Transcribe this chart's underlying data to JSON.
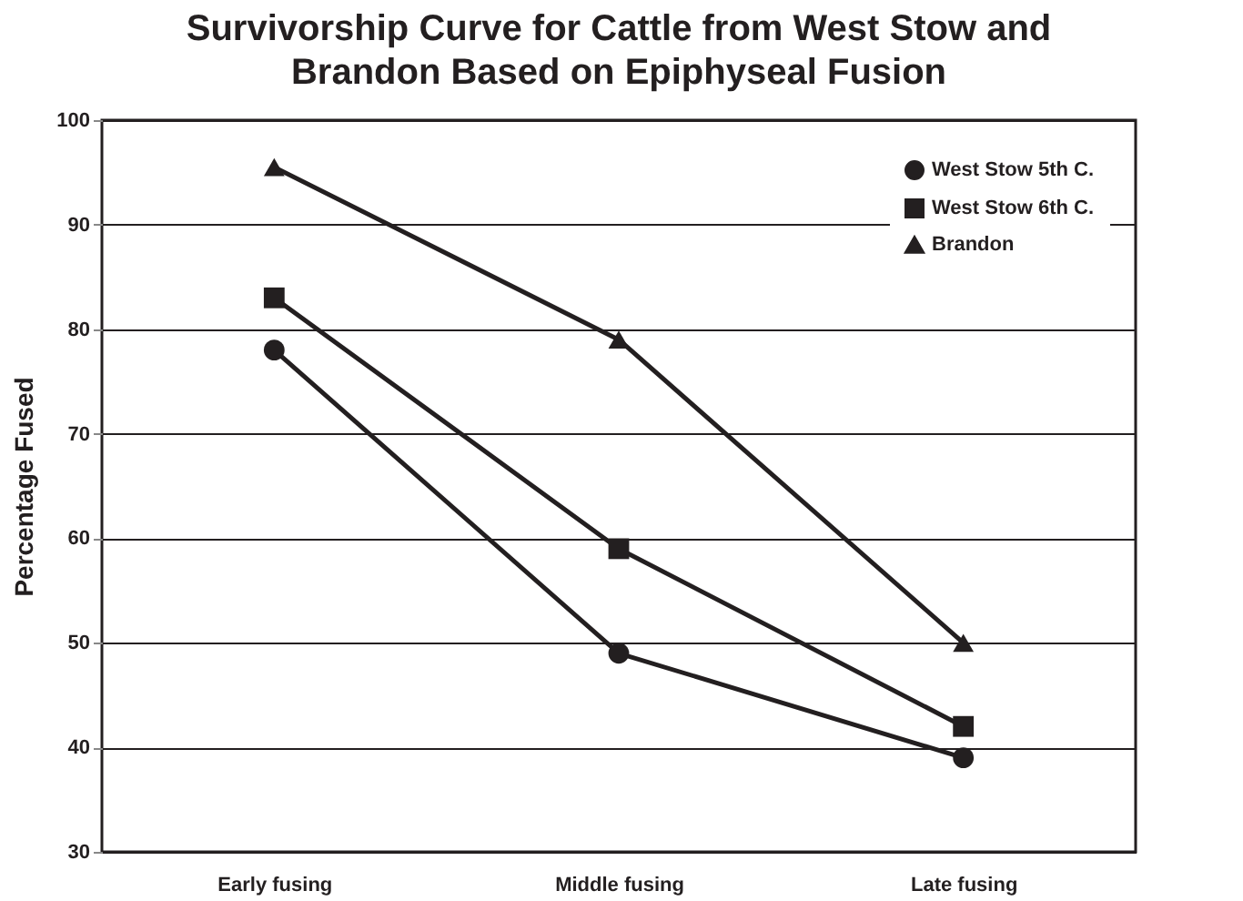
{
  "chart_data": {
    "type": "line",
    "title": "Survivorship Curve for Cattle from West Stow and Brandon Based on Epiphyseal Fusion",
    "ylabel": "Percentage Fused",
    "categories": [
      "Early fusing",
      "Middle fusing",
      "Late fusing"
    ],
    "series": [
      {
        "name": "West Stow 5th C.",
        "color": "#231f20",
        "marker": "circle",
        "values": [
          78,
          49,
          39
        ]
      },
      {
        "name": "West Stow 6th C.",
        "color": "#231f20",
        "marker": "square",
        "values": [
          83,
          59,
          42
        ]
      },
      {
        "name": "Brandon",
        "color": "#231f20",
        "marker": "triangle",
        "values": [
          95.5,
          79,
          50
        ]
      }
    ],
    "ylim": [
      30,
      100
    ],
    "yticks": [
      30,
      40,
      50,
      60,
      70,
      80,
      90,
      100
    ],
    "grid": "y",
    "legend": "top right",
    "line_style": "solid"
  }
}
